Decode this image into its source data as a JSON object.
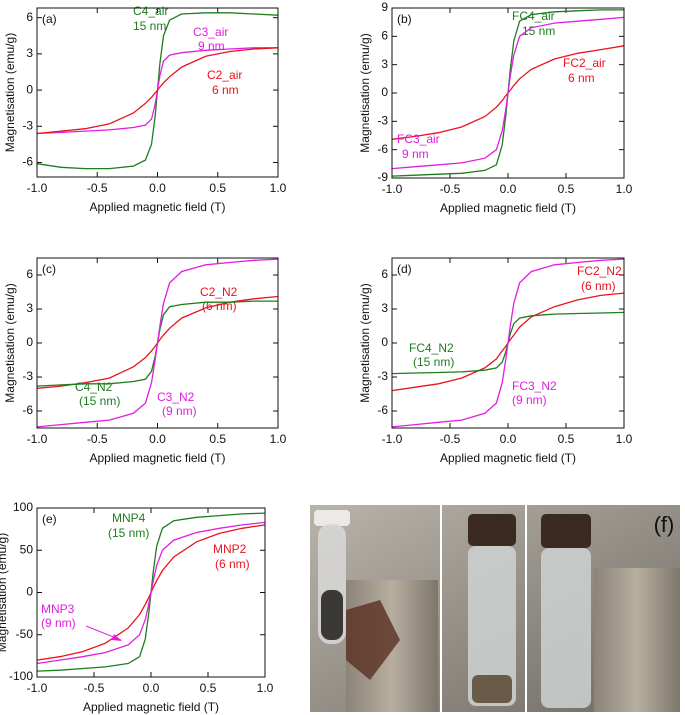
{
  "chart_data": [
    {
      "type": "line",
      "panel_label": "(a)",
      "xlabel": "Applied magnetic field (T)",
      "ylabel": "Magnetisation (emu/g)",
      "x": [
        -1,
        -0.8,
        -0.6,
        -0.4,
        -0.2,
        -0.1,
        -0.05,
        -0.02,
        0,
        0.02,
        0.05,
        0.1,
        0.2,
        0.4,
        0.6,
        0.8,
        1
      ],
      "xlim": [
        -1,
        1
      ],
      "xticks": [
        {
          "value": -1,
          "label": "-1.0"
        },
        -0.5,
        {
          "value": 0,
          "label": "0.0"
        },
        0.5,
        {
          "value": 1,
          "label": "1.0"
        }
      ],
      "ylim": [
        -7.2,
        6.8
      ],
      "yticks": [
        -6,
        -3,
        0,
        3,
        6
      ],
      "series": [
        {
          "name": "C4_air",
          "note": "15 nm",
          "color": "#1e7d1e",
          "values": [
            -6.1,
            -6.4,
            -6.5,
            -6.5,
            -6.3,
            -5.8,
            -4.5,
            -2.2,
            0,
            2.2,
            4.5,
            5.8,
            6.3,
            6.4,
            6.4,
            6.3,
            6.2
          ]
        },
        {
          "name": "C3_air",
          "note": "9 nm",
          "color": "#e01fe0",
          "values": [
            -3.6,
            -3.5,
            -3.4,
            -3.3,
            -3.1,
            -2.9,
            -2.4,
            -1.2,
            0,
            1.2,
            2.4,
            2.9,
            3.1,
            3.3,
            3.4,
            3.5,
            3.5
          ]
        },
        {
          "name": "C2_air",
          "note": "6 nm",
          "color": "#e8141e",
          "values": [
            -3.6,
            -3.4,
            -3.2,
            -2.8,
            -1.9,
            -1.1,
            -0.6,
            -0.25,
            0,
            0.25,
            0.6,
            1.1,
            1.9,
            2.8,
            3.2,
            3.4,
            3.5
          ]
        }
      ]
    },
    {
      "type": "line",
      "panel_label": "(b)",
      "xlabel": "Applied magnetic field (T)",
      "ylabel": "Magnetisation (emu/g)",
      "x": [
        -1,
        -0.8,
        -0.6,
        -0.4,
        -0.2,
        -0.1,
        -0.05,
        -0.02,
        0,
        0.02,
        0.05,
        0.1,
        0.2,
        0.4,
        0.6,
        0.8,
        1
      ],
      "xlim": [
        -1,
        1
      ],
      "xticks": [
        {
          "value": -1,
          "label": "-1.0"
        },
        -0.5,
        {
          "value": 0,
          "label": "0.0"
        },
        0.5,
        {
          "value": 1,
          "label": "1.0"
        }
      ],
      "ylim": [
        -9,
        9
      ],
      "yticks": [
        -9,
        -6,
        -3,
        0,
        3,
        6,
        9
      ],
      "series": [
        {
          "name": "FC4_air",
          "note": "15 nm",
          "color": "#1e7d1e",
          "values": [
            -8.8,
            -8.7,
            -8.6,
            -8.5,
            -8.2,
            -7.6,
            -5.5,
            -2.5,
            0,
            2.5,
            5.5,
            7.6,
            8.3,
            8.6,
            8.7,
            8.8,
            8.8
          ]
        },
        {
          "name": "FC2_air",
          "note": "6 nm",
          "color": "#e8141e",
          "values": [
            -4.9,
            -4.6,
            -4.2,
            -3.6,
            -2.5,
            -1.5,
            -0.8,
            -0.3,
            0,
            0.3,
            0.8,
            1.5,
            2.5,
            3.6,
            4.2,
            4.6,
            5.0
          ]
        },
        {
          "name": "FC3_air",
          "note": "9 nm",
          "color": "#e01fe0",
          "values": [
            -8.0,
            -7.8,
            -7.6,
            -7.4,
            -6.9,
            -6,
            -4,
            -1.8,
            0,
            1.8,
            4,
            6,
            6.9,
            7.4,
            7.6,
            7.8,
            8.0
          ]
        }
      ]
    },
    {
      "type": "line",
      "panel_label": "(c)",
      "xlabel": "Applied magnetic field (T)",
      "ylabel": "Magnetisation (emu/g)",
      "x": [
        -1,
        -0.8,
        -0.6,
        -0.4,
        -0.2,
        -0.1,
        -0.05,
        -0.02,
        0,
        0.02,
        0.05,
        0.1,
        0.2,
        0.4,
        0.6,
        0.8,
        1
      ],
      "xlim": [
        -1,
        1
      ],
      "xticks": [
        {
          "value": -1,
          "label": "-1.0"
        },
        -0.5,
        {
          "value": 0,
          "label": "0.0"
        },
        0.5,
        {
          "value": 1,
          "label": "1.0"
        }
      ],
      "ylim": [
        -7.5,
        7.5
      ],
      "yticks": [
        -6,
        -3,
        0,
        3,
        6
      ],
      "series": [
        {
          "name": "C2_N2",
          "note": "(6 nm)",
          "color": "#e8141e",
          "values": [
            -4.0,
            -3.8,
            -3.5,
            -3.1,
            -2.1,
            -1.3,
            -0.7,
            -0.3,
            0,
            0.3,
            0.7,
            1.3,
            2.2,
            3.1,
            3.6,
            3.9,
            4.1
          ]
        },
        {
          "name": "C4_N2",
          "note": "(15 nm)",
          "color": "#1e7d1e",
          "values": [
            -3.8,
            -3.7,
            -3.6,
            -3.6,
            -3.4,
            -3.2,
            -2.5,
            -1.2,
            0,
            1.2,
            2.5,
            3.2,
            3.4,
            3.6,
            3.6,
            3.7,
            3.7
          ]
        },
        {
          "name": "C3_N2",
          "note": "(9 nm)",
          "color": "#e01fe0",
          "values": [
            -7.4,
            -7.2,
            -7,
            -6.8,
            -6.2,
            -5.3,
            -3.5,
            -1.5,
            0,
            1.5,
            3.5,
            5.3,
            6.3,
            6.9,
            7.1,
            7.3,
            7.4
          ]
        }
      ]
    },
    {
      "type": "line",
      "panel_label": "(d)",
      "xlabel": "Applied magnetic field (T)",
      "ylabel": "Magnetisation (emu/g)",
      "x": [
        -1,
        -0.8,
        -0.6,
        -0.4,
        -0.2,
        -0.1,
        -0.05,
        -0.02,
        0,
        0.02,
        0.05,
        0.1,
        0.2,
        0.4,
        0.6,
        0.8,
        1
      ],
      "xlim": [
        -1,
        1
      ],
      "xticks": [
        {
          "value": -1,
          "label": "-1.0"
        },
        -0.5,
        {
          "value": 0,
          "label": "0.0"
        },
        0.5,
        {
          "value": 1,
          "label": "1.0"
        }
      ],
      "ylim": [
        -7.5,
        7.5
      ],
      "yticks": [
        -6,
        -3,
        0,
        3,
        6
      ],
      "series": [
        {
          "name": "FC2_N2",
          "note": "(6 nm)",
          "color": "#e8141e",
          "values": [
            -4.2,
            -3.9,
            -3.6,
            -3.1,
            -2.2,
            -1.4,
            -0.7,
            -0.3,
            0,
            0.3,
            0.7,
            1.4,
            2.3,
            3.2,
            3.8,
            4.2,
            4.4
          ]
        },
        {
          "name": "FC4_N2",
          "note": "(15 nm)",
          "color": "#1e7d1e",
          "values": [
            -2.7,
            -2.65,
            -2.6,
            -2.55,
            -2.4,
            -2.2,
            -1.7,
            -0.8,
            0,
            0.8,
            1.7,
            2.2,
            2.4,
            2.55,
            2.6,
            2.65,
            2.7
          ]
        },
        {
          "name": "FC3_N2",
          "note": "(9 nm)",
          "color": "#e01fe0",
          "values": [
            -7.4,
            -7.2,
            -7,
            -6.8,
            -6.2,
            -5.3,
            -3.5,
            -1.5,
            0,
            1.5,
            3.5,
            5.3,
            6.3,
            6.9,
            7.1,
            7.3,
            7.4
          ]
        }
      ]
    },
    {
      "type": "line",
      "panel_label": "(e)",
      "xlabel": "Applied magnetic field (T)",
      "ylabel": "Magnetisation (emu/g)",
      "x": [
        -1,
        -0.8,
        -0.6,
        -0.4,
        -0.2,
        -0.1,
        -0.05,
        -0.02,
        0,
        0.02,
        0.05,
        0.1,
        0.2,
        0.4,
        0.6,
        0.8,
        1
      ],
      "xlim": [
        -1,
        1
      ],
      "xticks": [
        {
          "value": -1,
          "label": "-1.0"
        },
        -0.5,
        {
          "value": 0,
          "label": "0.0"
        },
        0.5,
        {
          "value": 1,
          "label": "1.0"
        }
      ],
      "ylim": [
        -100,
        100
      ],
      "yticks": [
        -100,
        -50,
        0,
        50,
        100
      ],
      "series": [
        {
          "name": "MNP4",
          "note": "(15 nm)",
          "color": "#1e7d1e",
          "values": [
            -93,
            -92,
            -90,
            -88,
            -84,
            -76,
            -55,
            -25,
            0,
            25,
            55,
            76,
            85,
            89,
            91,
            93,
            94
          ]
        },
        {
          "name": "MNP2",
          "note": "(6 nm)",
          "color": "#e8141e",
          "values": [
            -80,
            -76,
            -70,
            -60,
            -42,
            -26,
            -14,
            -6,
            0,
            6,
            14,
            26,
            42,
            60,
            70,
            76,
            80
          ]
        },
        {
          "name": "MNP3",
          "note": "(9 nm)",
          "color": "#e01fe0",
          "values": [
            -84,
            -80,
            -76,
            -71,
            -62,
            -50,
            -32,
            -14,
            0,
            14,
            32,
            50,
            62,
            71,
            76,
            80,
            83
          ]
        }
      ]
    }
  ],
  "photo": {
    "label": "(f)"
  }
}
